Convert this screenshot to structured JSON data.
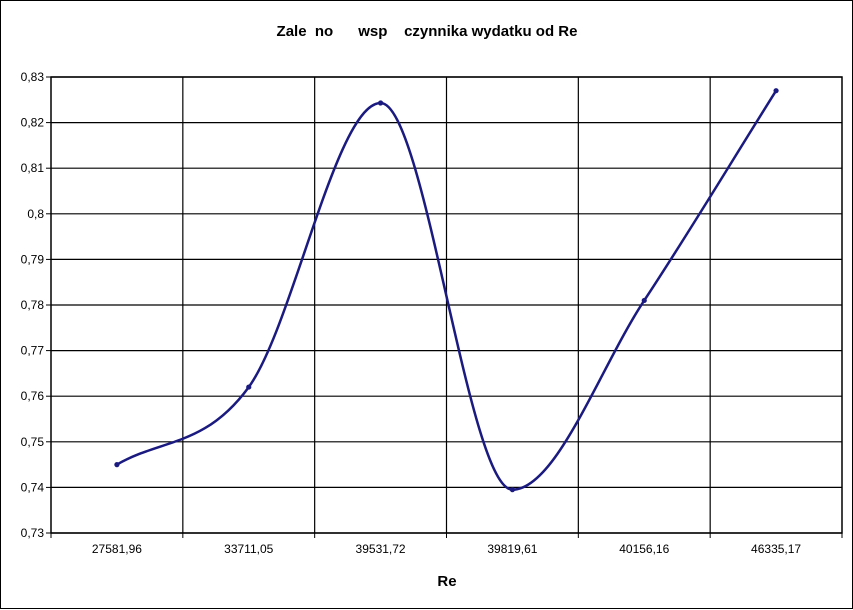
{
  "chart_data": {
    "type": "line",
    "title": "Zale  no      wsp    czynnika wydatku od Re",
    "xlabel": "Re",
    "ylabel": "",
    "categories": [
      "27581,96",
      "33711,05",
      "39531,72",
      "39819,61",
      "40156,16",
      "46335,17"
    ],
    "ylim": [
      0.73,
      0.83
    ],
    "ytick_labels": [
      "0,73",
      "0,74",
      "0,75",
      "0,76",
      "0,77",
      "0,78",
      "0,79",
      "0,8",
      "0,81",
      "0,82",
      "0,83"
    ],
    "series": [
      {
        "values": [
          0.745,
          0.762,
          0.8243,
          0.7395,
          0.781,
          0.827
        ]
      }
    ],
    "grid": true,
    "legend": "none",
    "line_color": "#1a1a80",
    "smoothed": true
  }
}
